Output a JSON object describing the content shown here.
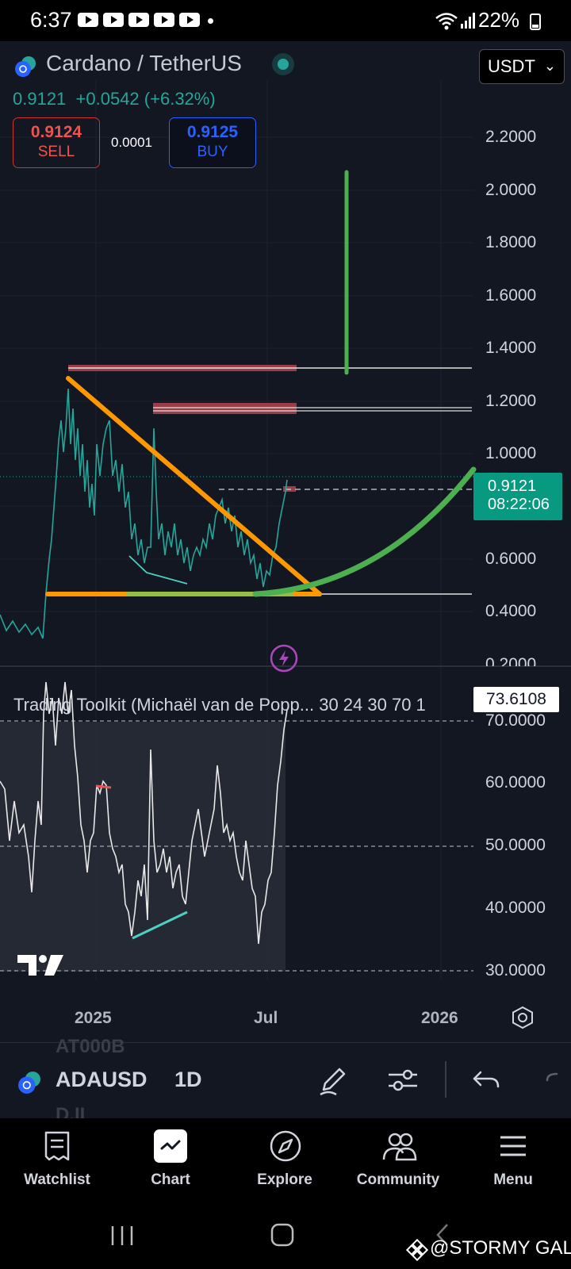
{
  "status_bar": {
    "time": "6:37",
    "battery": "22%",
    "icons": [
      "youtube-icon",
      "youtube-icon",
      "youtube-icon",
      "youtube-icon",
      "youtube-icon",
      "notification-dot",
      "wifi-icon",
      "signal-icon",
      "battery-icon"
    ]
  },
  "header": {
    "pair_name": "Cardano / TetherUS",
    "currency": "USDT",
    "last_price": "0.9121",
    "change": "+0.0542",
    "change_pct": "(+6.32%)",
    "sell_price": "0.9124",
    "sell_label": "SELL",
    "spread": "0.0001",
    "buy_price": "0.9125",
    "buy_label": "BUY"
  },
  "price_axis": {
    "labels": [
      "2.2000",
      "2.0000",
      "1.8000",
      "1.6000",
      "1.4000",
      "1.2000",
      "1.0000",
      "0.6000",
      "0.4000",
      "0.2000"
    ],
    "last_price_tag": "0.9121",
    "countdown": "08:22:06"
  },
  "indicator": {
    "title": "Trading Toolkit (Michaël van de Popp... 30 24 30 70 1",
    "value": "73.6108",
    "axis_labels": [
      "70.0000",
      "60.0000",
      "50.0000",
      "40.0000",
      "30.0000"
    ]
  },
  "time_axis": {
    "labels": [
      "2025",
      "Jul",
      "2026"
    ]
  },
  "toolbar": {
    "ghost_above": "AT000B",
    "symbol": "ADAUSD",
    "interval": "1D",
    "ghost_below": "D.II"
  },
  "bottom_nav": {
    "items": [
      {
        "label": "Watchlist",
        "icon": "watchlist-icon"
      },
      {
        "label": "Chart",
        "icon": "chart-icon"
      },
      {
        "label": "Explore",
        "icon": "compass-icon"
      },
      {
        "label": "Community",
        "icon": "community-icon"
      },
      {
        "label": "Menu",
        "icon": "menu-icon"
      }
    ]
  },
  "watermark": "@STORMY GAL",
  "colors": {
    "background": "#131722",
    "up": "#26a69a",
    "sell": "#ef5350",
    "buy": "#2962ff",
    "orange_trendline": "#ff9800",
    "green_curve": "#4caf50",
    "resistance_zone": "#b2454f"
  },
  "chart_data": {
    "type": "line",
    "symbol": "ADAUSD",
    "interval": "1D",
    "ylim": [
      0.2,
      2.3
    ],
    "x": [
      "2024-11",
      "2024-12",
      "2025-01",
      "2025-02",
      "2025-03",
      "2025-04",
      "2025-05",
      "2025-06",
      "2025-07"
    ],
    "series": [
      {
        "values": [
          0.35,
          0.9,
          1.05,
          0.95,
          0.75,
          0.62,
          0.72,
          0.58,
          0.91
        ]
      }
    ],
    "indicator_series": {
      "ylim": [
        30,
        75
      ],
      "values": [
        48,
        72,
        60,
        55,
        38,
        47,
        58,
        40,
        73.6
      ]
    },
    "annotations": {
      "resistance_levels": [
        1.33,
        1.18
      ],
      "support_level": 0.51,
      "target_move_top": 2.1
    }
  }
}
